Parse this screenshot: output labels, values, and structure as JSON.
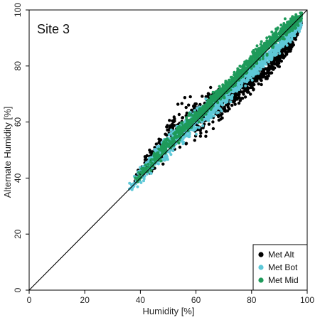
{
  "chart_data": {
    "type": "scatter",
    "title": "Site 3",
    "xlabel": "Humidity [%]",
    "ylabel": "Alternate Humidity [%]",
    "xlim": [
      0,
      100
    ],
    "ylim": [
      0,
      100
    ],
    "xticks": [
      0,
      20,
      40,
      60,
      80,
      100
    ],
    "yticks": [
      0,
      20,
      40,
      60,
      80,
      100
    ],
    "reference_line": "1:1",
    "grid": false,
    "legend_position": "bottom-right",
    "draw_order": [
      "Met Alt",
      "Met Bot",
      "Met Mid"
    ],
    "series": [
      {
        "name": "Met Alt",
        "color": "#000000",
        "marker": "filled-circle",
        "envelope": {
          "x": [
            38,
            45,
            50,
            55,
            60,
            65,
            70,
            75,
            80,
            85,
            90,
            95,
            98
          ],
          "y_low": [
            37,
            41,
            44,
            47,
            51,
            55,
            60,
            64,
            68,
            72,
            78,
            86,
            95
          ],
          "y_high": [
            44,
            54,
            65,
            70,
            71,
            73,
            76,
            78,
            83,
            86,
            89,
            93,
            97
          ]
        }
      },
      {
        "name": "Met Bot",
        "color": "#5ec8d8",
        "marker": "filled-circle",
        "envelope": {
          "x": [
            36,
            40,
            45,
            50,
            55,
            60,
            65,
            70,
            75,
            80,
            85,
            90,
            95,
            98
          ],
          "y_low": [
            33,
            37,
            41,
            45,
            50,
            54,
            59,
            64,
            69,
            74,
            79,
            84,
            89,
            93
          ],
          "y_high": [
            40,
            46,
            52,
            58,
            62,
            66,
            70,
            73,
            78,
            82,
            86,
            90,
            95,
            98
          ]
        }
      },
      {
        "name": "Met Mid",
        "color": "#1e9a5a",
        "marker": "filled-circle",
        "envelope": {
          "x": [
            38,
            42,
            47,
            52,
            57,
            62,
            67,
            72,
            77,
            82,
            87,
            92,
            96,
            98
          ],
          "y_low": [
            36,
            40,
            45,
            50,
            55,
            60,
            65,
            70,
            75,
            80,
            85,
            89,
            93,
            95
          ],
          "y_high": [
            41,
            46,
            53,
            58,
            63,
            67,
            72,
            77,
            82,
            88,
            93,
            97,
            99,
            100
          ]
        }
      }
    ]
  }
}
